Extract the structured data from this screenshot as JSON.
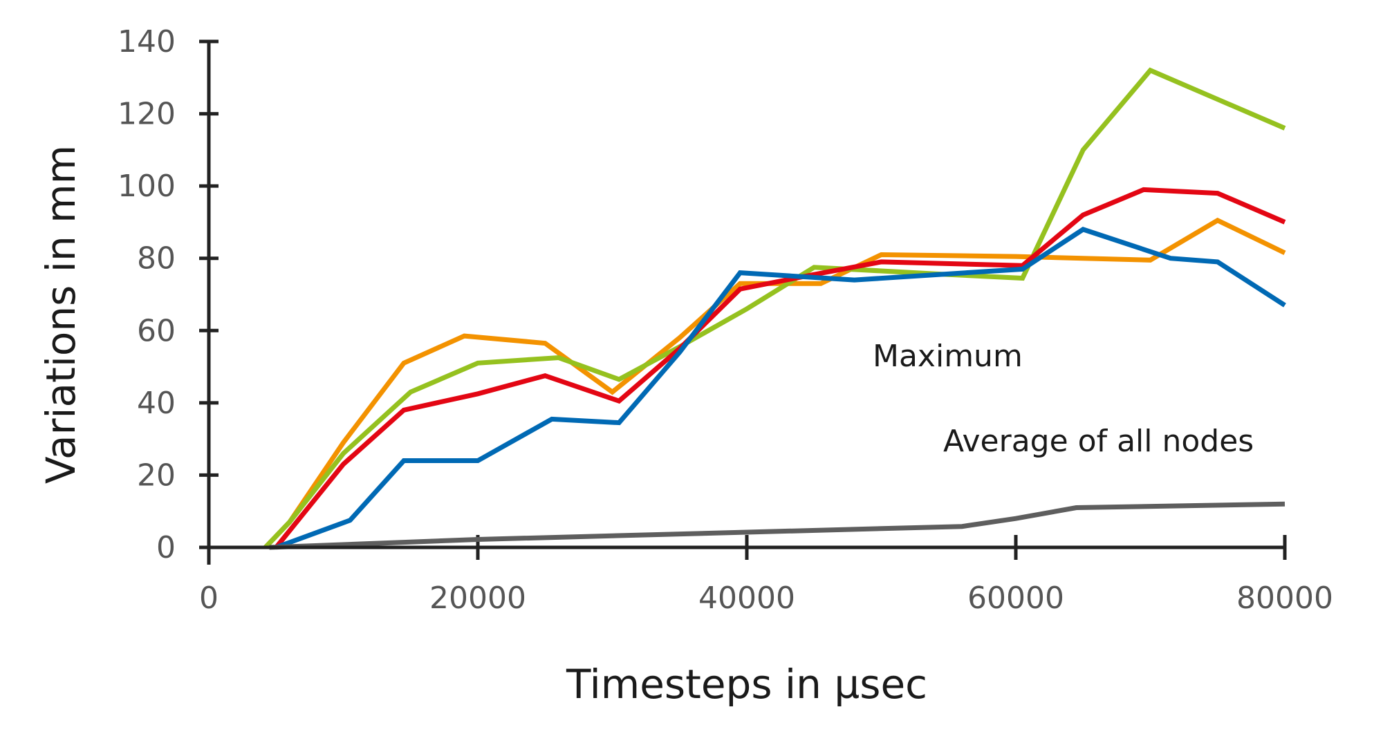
{
  "chart_data": {
    "type": "line",
    "title": "",
    "xlabel": "Timesteps in µsec",
    "ylabel": "Variations in mm",
    "xlim": [
      0,
      80000
    ],
    "ylim": [
      0,
      140
    ],
    "x_ticks": [
      0,
      20000,
      40000,
      60000,
      80000
    ],
    "x_tick_labels": [
      "0",
      "20000",
      "40000",
      "60000",
      "80000"
    ],
    "y_ticks": [
      0,
      20,
      40,
      60,
      80,
      100,
      120,
      140
    ],
    "y_tick_labels": [
      "0",
      "20",
      "40",
      "60",
      "80",
      "100",
      "120",
      "140"
    ],
    "grid": false,
    "annotations": {
      "maximum": "Maximum",
      "average": "Average of all nodes"
    },
    "series": [
      {
        "color": "#f39200",
        "points": [
          [
            4200,
            0
          ],
          [
            6000,
            7
          ],
          [
            10000,
            29
          ],
          [
            14500,
            51
          ],
          [
            19000,
            58.5
          ],
          [
            25000,
            56.5
          ],
          [
            30000,
            43
          ],
          [
            35000,
            58
          ],
          [
            39500,
            73
          ],
          [
            45500,
            73
          ],
          [
            50000,
            81
          ],
          [
            60000,
            80.5
          ],
          [
            65000,
            80
          ],
          [
            70000,
            79.5
          ],
          [
            75000,
            90.5
          ],
          [
            80000,
            81.5
          ]
        ]
      },
      {
        "color": "#95c11f",
        "points": [
          [
            4200,
            0
          ],
          [
            6000,
            7
          ],
          [
            10000,
            26
          ],
          [
            15000,
            43
          ],
          [
            20000,
            51
          ],
          [
            26000,
            52.5
          ],
          [
            30500,
            46.5
          ],
          [
            35000,
            55.5
          ],
          [
            40000,
            66
          ],
          [
            45000,
            77.5
          ],
          [
            50000,
            76.5
          ],
          [
            55000,
            75.5
          ],
          [
            60500,
            74.5
          ],
          [
            65000,
            110
          ],
          [
            70000,
            132
          ],
          [
            75000,
            124
          ],
          [
            80000,
            116
          ]
        ]
      },
      {
        "color": "#e30613",
        "points": [
          [
            5000,
            0
          ],
          [
            10000,
            23
          ],
          [
            14500,
            38
          ],
          [
            20000,
            42.5
          ],
          [
            25000,
            47.5
          ],
          [
            30500,
            40.5
          ],
          [
            35000,
            55
          ],
          [
            39500,
            71.5
          ],
          [
            45000,
            75.5
          ],
          [
            50000,
            79
          ],
          [
            60500,
            78
          ],
          [
            65000,
            92
          ],
          [
            69500,
            99
          ],
          [
            75000,
            98
          ],
          [
            80000,
            90
          ]
        ]
      },
      {
        "color": "#0069b4",
        "points": [
          [
            5000,
            0
          ],
          [
            10500,
            7.5
          ],
          [
            14500,
            24
          ],
          [
            20000,
            24
          ],
          [
            25500,
            35.5
          ],
          [
            30500,
            34.5
          ],
          [
            35000,
            54
          ],
          [
            39500,
            76
          ],
          [
            48000,
            74
          ],
          [
            60500,
            77
          ],
          [
            65000,
            88
          ],
          [
            71500,
            80
          ],
          [
            75000,
            79
          ],
          [
            80000,
            67
          ]
        ]
      },
      {
        "color": "#5e5e5e",
        "points": [
          [
            4500,
            0
          ],
          [
            20000,
            2.2
          ],
          [
            40000,
            4.2
          ],
          [
            56000,
            5.8
          ],
          [
            60000,
            8
          ],
          [
            64500,
            11
          ],
          [
            80000,
            12
          ]
        ]
      }
    ]
  }
}
